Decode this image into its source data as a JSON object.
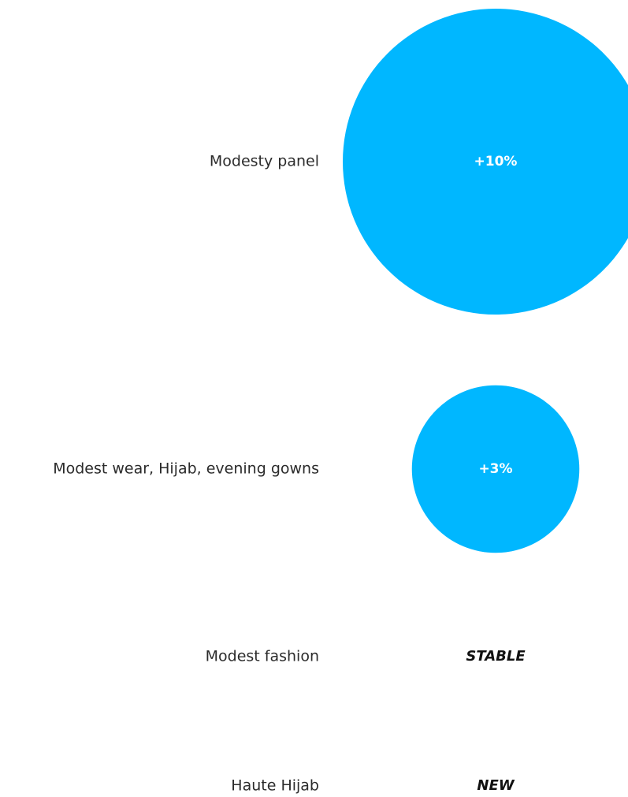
{
  "chart_data": {
    "type": "bubble",
    "bubble_color": "#00B7FF",
    "rows": [
      {
        "category": "Modesty panel",
        "value": 10,
        "label": "+10%"
      },
      {
        "category": "Modest wear, Hijab, evening gowns",
        "value": 3,
        "label": "+3%"
      },
      {
        "category": "Modest fashion",
        "value": null,
        "label": "STABLE"
      },
      {
        "category": "Haute Hijab",
        "value": null,
        "label": "NEW"
      }
    ]
  }
}
